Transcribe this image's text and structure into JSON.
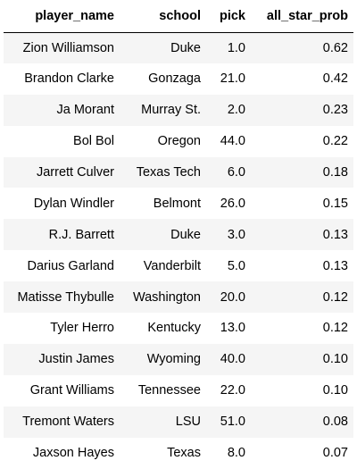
{
  "table": {
    "columns": [
      "player_name",
      "school",
      "pick",
      "all_star_prob"
    ],
    "rows": [
      {
        "player_name": "Zion Williamson",
        "school": "Duke",
        "pick": "1.0",
        "all_star_prob": "0.62"
      },
      {
        "player_name": "Brandon Clarke",
        "school": "Gonzaga",
        "pick": "21.0",
        "all_star_prob": "0.42"
      },
      {
        "player_name": "Ja Morant",
        "school": "Murray St.",
        "pick": "2.0",
        "all_star_prob": "0.23"
      },
      {
        "player_name": "Bol Bol",
        "school": "Oregon",
        "pick": "44.0",
        "all_star_prob": "0.22"
      },
      {
        "player_name": "Jarrett Culver",
        "school": "Texas Tech",
        "pick": "6.0",
        "all_star_prob": "0.18"
      },
      {
        "player_name": "Dylan Windler",
        "school": "Belmont",
        "pick": "26.0",
        "all_star_prob": "0.15"
      },
      {
        "player_name": "R.J. Barrett",
        "school": "Duke",
        "pick": "3.0",
        "all_star_prob": "0.13"
      },
      {
        "player_name": "Darius Garland",
        "school": "Vanderbilt",
        "pick": "5.0",
        "all_star_prob": "0.13"
      },
      {
        "player_name": "Matisse Thybulle",
        "school": "Washington",
        "pick": "20.0",
        "all_star_prob": "0.12"
      },
      {
        "player_name": "Tyler Herro",
        "school": "Kentucky",
        "pick": "13.0",
        "all_star_prob": "0.12"
      },
      {
        "player_name": "Justin James",
        "school": "Wyoming",
        "pick": "40.0",
        "all_star_prob": "0.10"
      },
      {
        "player_name": "Grant Williams",
        "school": "Tennessee",
        "pick": "22.0",
        "all_star_prob": "0.10"
      },
      {
        "player_name": "Tremont Waters",
        "school": "LSU",
        "pick": "51.0",
        "all_star_prob": "0.08"
      },
      {
        "player_name": "Jaxson Hayes",
        "school": "Texas",
        "pick": "8.0",
        "all_star_prob": "0.07"
      }
    ]
  }
}
